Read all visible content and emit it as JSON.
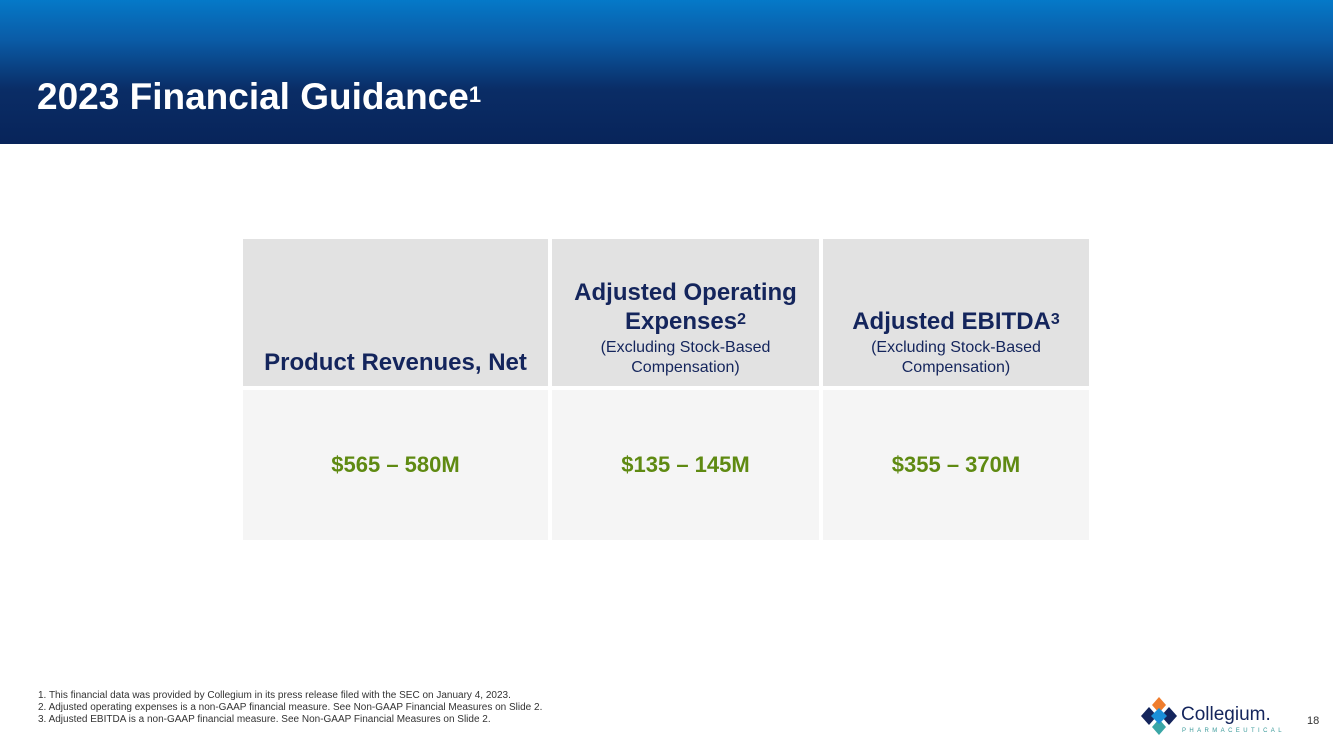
{
  "slide": {
    "title": "2023 Financial Guidance",
    "title_superscript": "1",
    "page_number": "18"
  },
  "table": {
    "headers": [
      {
        "label": "Product Revenues, Net",
        "superscript": "",
        "sub": ""
      },
      {
        "label": "Adjusted Operating Expenses",
        "superscript": "2",
        "sub": "(Excluding Stock-Based Compensation)"
      },
      {
        "label": "Adjusted EBITDA",
        "superscript": "3",
        "sub": "(Excluding Stock-Based Compensation)"
      }
    ],
    "values": [
      "$565 – 580M",
      "$135 – 145M",
      "$355 – 370M"
    ]
  },
  "footnotes": [
    "1. This financial data was provided by Collegium in its press release filed with the SEC on January 4, 2023.",
    "2. Adjusted operating expenses is a non-GAAP financial measure. See Non-GAAP Financial Measures on Slide 2.",
    "3. Adjusted EBITDA is a non-GAAP financial measure. See Non-GAAP Financial Measures on Slide 2."
  ],
  "logo": {
    "name": "Collegium.",
    "tagline": "PHARMACEUTICAL",
    "icon": "collegium-logo-icon"
  },
  "colors": {
    "header_dark": "#08245a",
    "header_light": "#0579c8",
    "header_text": "#14255c",
    "value_green": "#5f8a12",
    "header_cell_bg": "#e2e2e2",
    "value_cell_bg": "#f5f5f5"
  }
}
